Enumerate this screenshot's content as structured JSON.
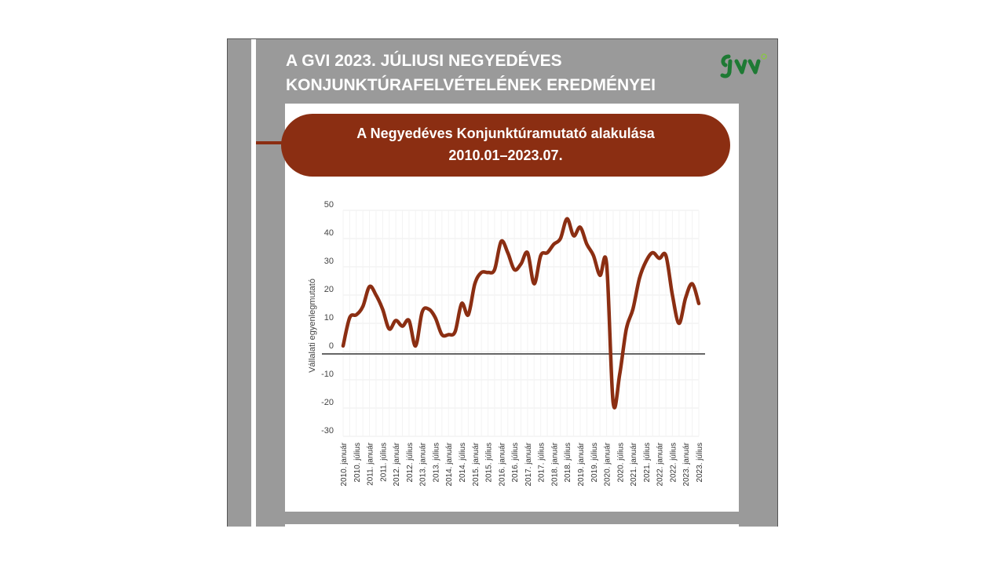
{
  "slide": {
    "title_line1": "A GVI 2023. JÚLIUSI NEGYEDÉVES",
    "title_line2": "KONJUNKTÚRAFELVÉTELÉNEK EREDMÉNYEI",
    "logo_icon": "gvi-logo-icon"
  },
  "colors": {
    "accent": "#8b2e12",
    "background": "#9a9a9a",
    "logo_green": "#1e7a34"
  },
  "chart_data": {
    "type": "line",
    "title": "A Negyedéves Konjunktúramutató alakulása",
    "subtitle": "2010.01–2023.07.",
    "xlabel": "",
    "ylabel": "Vállalati egyenlegmutató",
    "ylim": [
      -30,
      50
    ],
    "yticks": [
      50,
      40,
      30,
      20,
      10,
      0,
      -10,
      -20,
      -30
    ],
    "grid": true,
    "legend": "none",
    "x_tick_labels": [
      "2010. január",
      "2010. július",
      "2011. január",
      "2011. július",
      "2012. január",
      "2012. július",
      "2013. január",
      "2013. július",
      "2014. január",
      "2014. július",
      "2015. január",
      "2015. július",
      "2016. január",
      "2016. július",
      "2017. január",
      "2017. július",
      "2018. január",
      "2018. július",
      "2019. január",
      "2019. július",
      "2020. január",
      "2020. július",
      "2021. január",
      "2021. július",
      "2022. január",
      "2022. július",
      "2023. január",
      "2023. július"
    ],
    "series": [
      {
        "color": "#8b2e12",
        "values": [
          2,
          12,
          13,
          16,
          23,
          20,
          15,
          8,
          11,
          9,
          11,
          2,
          14,
          15,
          12,
          6,
          6,
          7,
          17,
          13,
          24,
          28,
          28,
          29,
          39,
          35,
          29,
          31,
          35,
          24,
          34,
          35,
          38,
          40,
          47,
          41,
          44,
          38,
          34,
          27,
          31,
          -18,
          -8,
          8,
          15,
          26,
          32,
          35,
          33,
          34,
          20,
          10,
          19,
          24,
          17
        ]
      }
    ]
  }
}
